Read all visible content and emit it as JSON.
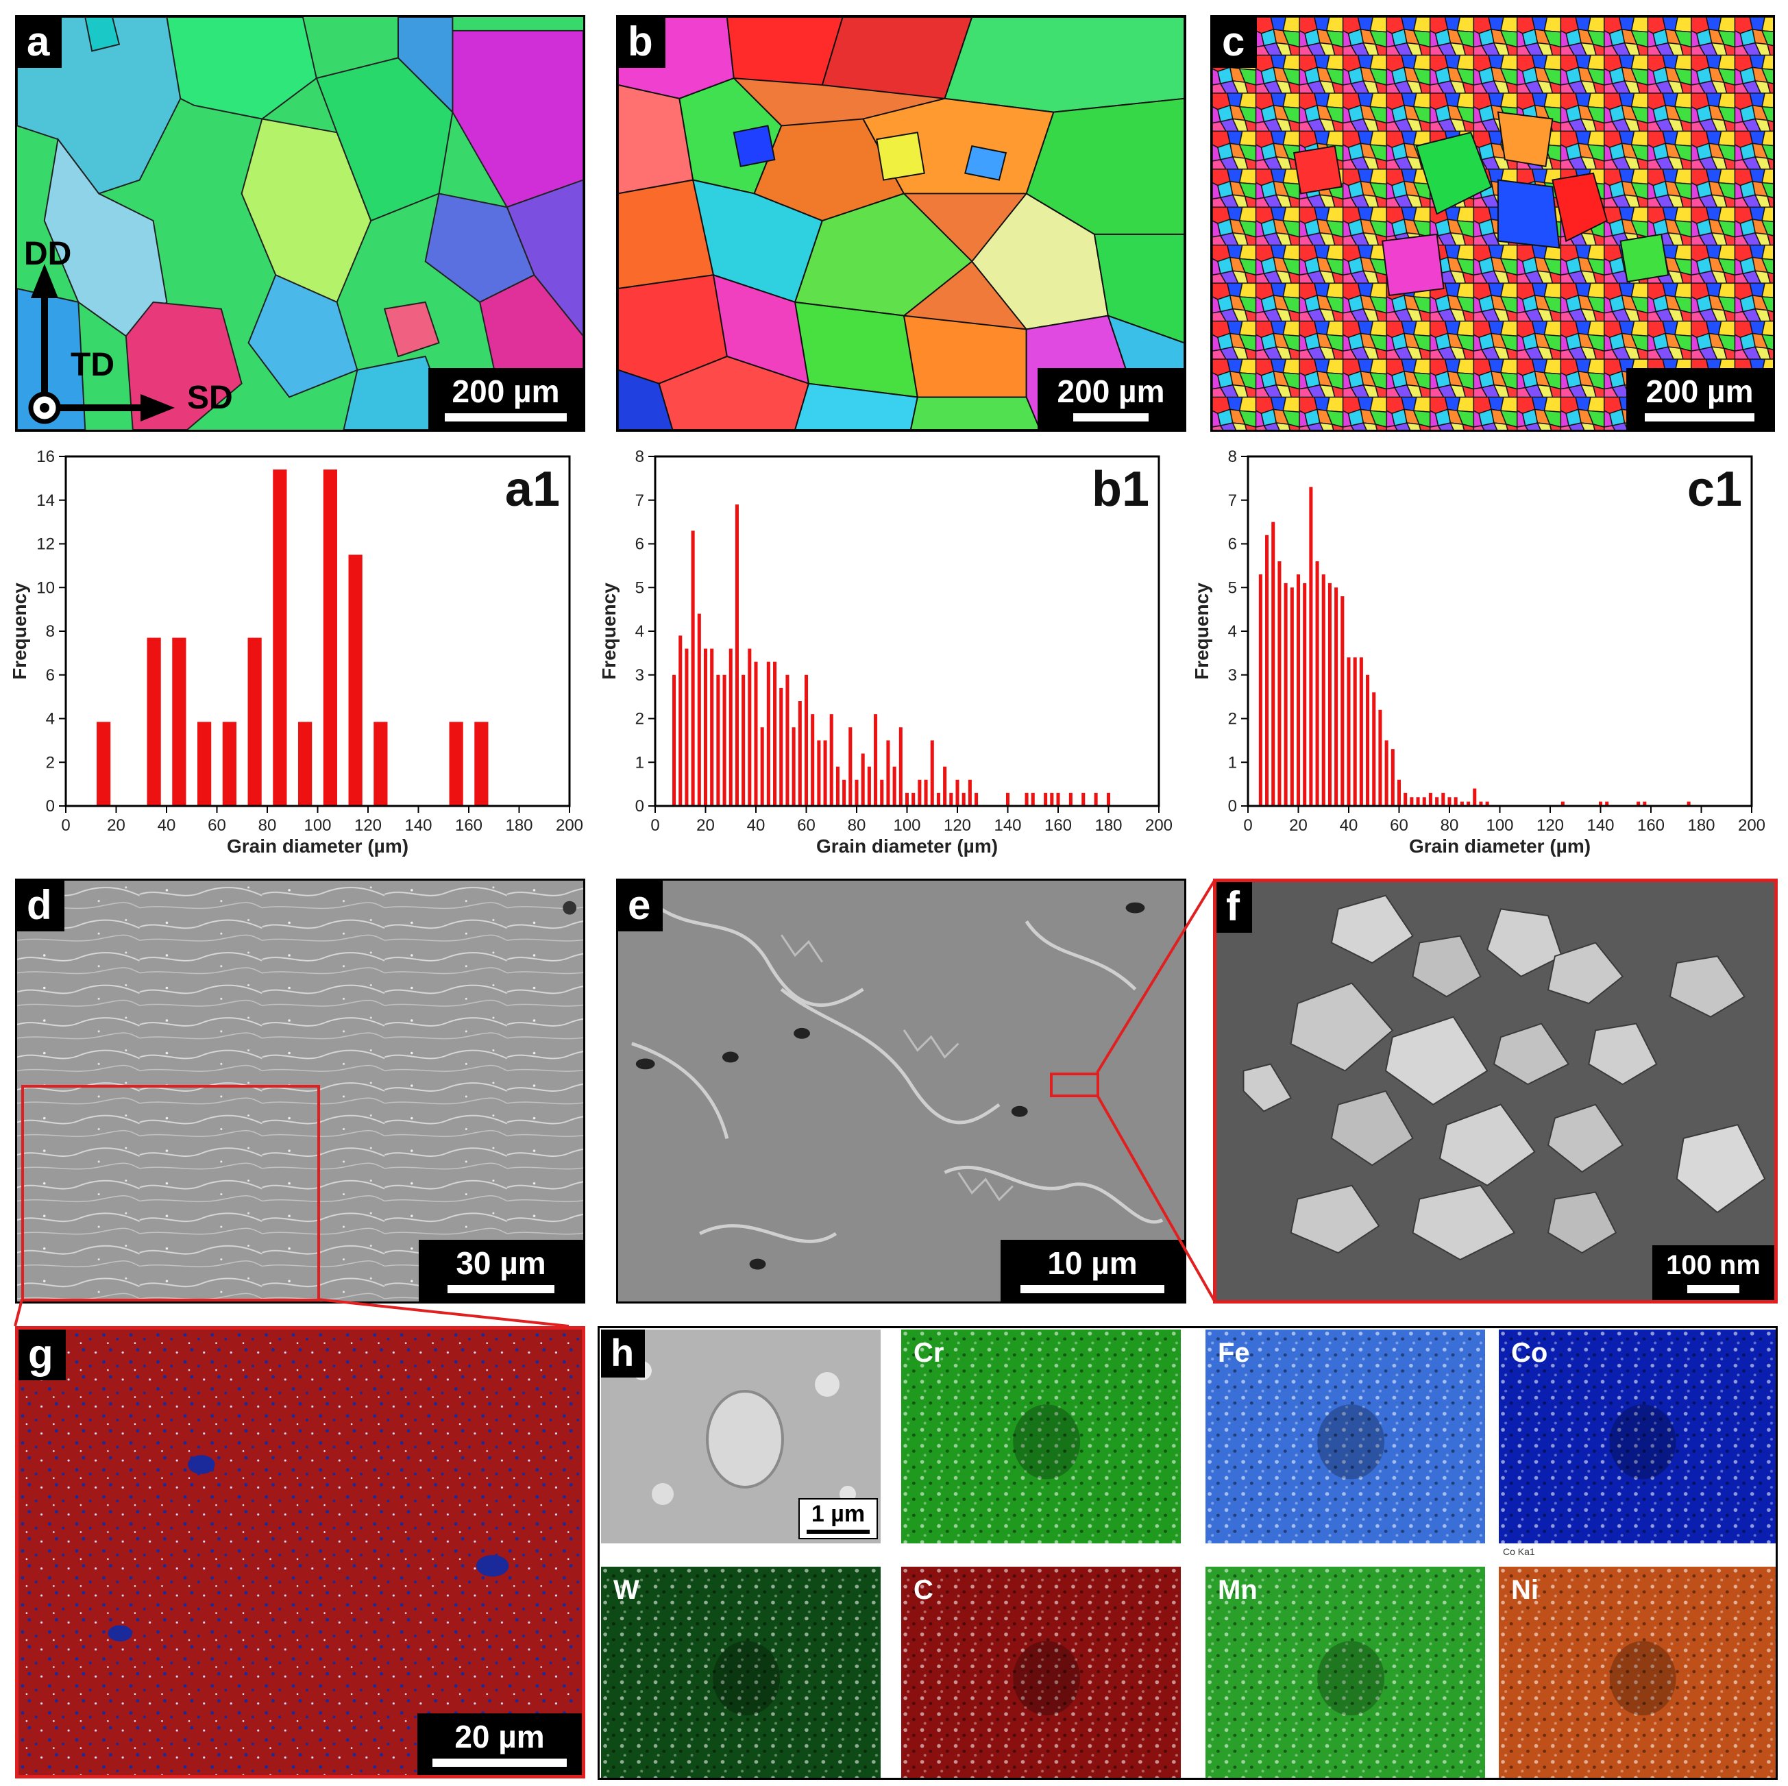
{
  "panels": {
    "a": {
      "label": "a",
      "scale": "200 µm",
      "axes": {
        "dd": "DD",
        "td": "TD",
        "sd": "SD"
      }
    },
    "b": {
      "label": "b",
      "scale": "200 µm"
    },
    "c": {
      "label": "c",
      "scale": "200 µm"
    },
    "d": {
      "label": "d",
      "scale": "30 µm"
    },
    "e": {
      "label": "e",
      "scale": "10 µm"
    },
    "f": {
      "label": "f",
      "scale": "100 nm"
    },
    "g": {
      "label": "g",
      "scale": "20 µm"
    },
    "h": {
      "label": "h",
      "scale": "1 µm",
      "tiny_caption": "Co Ka1",
      "maps": [
        {
          "element": "Cr",
          "color": "#1f9a1f"
        },
        {
          "element": "Fe",
          "color": "#3a6fd8"
        },
        {
          "element": "Co",
          "color": "#0a1fb0"
        },
        {
          "element": "W",
          "color": "#0e4a16"
        },
        {
          "element": "C",
          "color": "#8a1010"
        },
        {
          "element": "Mn",
          "color": "#2aa02a"
        },
        {
          "element": "Ni",
          "color": "#c0501a"
        }
      ]
    }
  },
  "chart_data": [
    {
      "type": "bar",
      "panel_label": "a1",
      "xlabel": "Grain diameter (µm)",
      "ylabel": "Frequency",
      "xlim": [
        0,
        200
      ],
      "ylim": [
        0,
        16
      ],
      "xticks": [
        0,
        20,
        40,
        60,
        80,
        100,
        120,
        140,
        160,
        180,
        200
      ],
      "yticks": [
        0,
        2,
        4,
        6,
        8,
        10,
        12,
        14,
        16
      ],
      "bar_color": "#ee1111",
      "x": [
        15,
        35,
        45,
        55,
        65,
        75,
        85,
        95,
        105,
        115,
        125,
        155,
        165
      ],
      "values": [
        3.85,
        7.7,
        7.7,
        3.85,
        3.85,
        7.7,
        15.4,
        3.85,
        15.4,
        11.5,
        3.85,
        3.85,
        3.85
      ]
    },
    {
      "type": "bar",
      "panel_label": "b1",
      "xlabel": "Grain diameter (µm)",
      "ylabel": "Frequency",
      "xlim": [
        0,
        200
      ],
      "ylim": [
        0,
        8
      ],
      "xticks": [
        0,
        20,
        40,
        60,
        80,
        100,
        120,
        140,
        160,
        180,
        200
      ],
      "yticks": [
        0,
        1,
        2,
        3,
        4,
        5,
        6,
        7,
        8
      ],
      "bar_color": "#ee1111",
      "x": [
        7.5,
        10,
        12.5,
        15,
        17.5,
        20,
        22.5,
        25,
        27.5,
        30,
        32.5,
        35,
        37.5,
        40,
        42.5,
        45,
        47.5,
        50,
        52.5,
        55,
        57.5,
        60,
        62.5,
        65,
        67.5,
        70,
        72.5,
        75,
        77.5,
        80,
        82.5,
        85,
        87.5,
        90,
        92.5,
        95,
        97.5,
        100,
        102.5,
        105,
        107.5,
        110,
        112.5,
        115,
        117.5,
        120,
        122.5,
        125,
        127.5,
        130,
        140,
        147.5,
        150,
        155,
        157.5,
        160,
        165,
        170,
        175,
        180
      ],
      "values": [
        3.0,
        3.9,
        3.6,
        6.3,
        4.4,
        3.6,
        3.6,
        3.0,
        3.0,
        3.6,
        6.9,
        3.0,
        3.6,
        3.3,
        1.8,
        3.3,
        3.3,
        2.7,
        3.0,
        1.8,
        2.4,
        3.0,
        2.1,
        1.5,
        1.5,
        2.1,
        0.9,
        0.6,
        1.8,
        0.6,
        1.2,
        0.9,
        2.1,
        0.6,
        1.5,
        0.9,
        1.8,
        0.3,
        0.3,
        0.6,
        0.6,
        1.5,
        0.3,
        0.9,
        0.3,
        0.6,
        0.3,
        0.6,
        0.3,
        0,
        0.3,
        0.3,
        0.3,
        0.3,
        0.3,
        0.3,
        0.3,
        0.3,
        0.3,
        0.3
      ]
    },
    {
      "type": "bar",
      "panel_label": "c1",
      "xlabel": "Grain diameter (µm)",
      "ylabel": "Frequency",
      "xlim": [
        0,
        200
      ],
      "ylim": [
        0,
        8
      ],
      "xticks": [
        0,
        20,
        40,
        60,
        80,
        100,
        120,
        140,
        160,
        180,
        200
      ],
      "yticks": [
        0,
        1,
        2,
        3,
        4,
        5,
        6,
        7,
        8
      ],
      "bar_color": "#ee1111",
      "x": [
        5,
        7.5,
        10,
        12.5,
        15,
        17.5,
        20,
        22.5,
        25,
        27.5,
        30,
        32.5,
        35,
        37.5,
        40,
        42.5,
        45,
        47.5,
        50,
        52.5,
        55,
        57.5,
        60,
        62.5,
        65,
        67.5,
        70,
        72.5,
        75,
        77.5,
        80,
        82.5,
        85,
        87.5,
        90,
        92.5,
        95,
        125,
        140,
        142.5,
        155,
        157.5,
        175
      ],
      "values": [
        5.3,
        6.2,
        6.5,
        5.6,
        5.1,
        5.0,
        5.3,
        5.1,
        7.3,
        5.6,
        5.3,
        5.1,
        5.0,
        4.8,
        3.4,
        3.4,
        3.4,
        3.0,
        2.6,
        2.2,
        1.5,
        1.3,
        0.6,
        0.3,
        0.2,
        0.2,
        0.2,
        0.3,
        0.2,
        0.3,
        0.2,
        0.2,
        0.1,
        0.1,
        0.4,
        0.1,
        0.1,
        0.1,
        0.1,
        0.1,
        0.1,
        0.1,
        0.1
      ]
    }
  ]
}
